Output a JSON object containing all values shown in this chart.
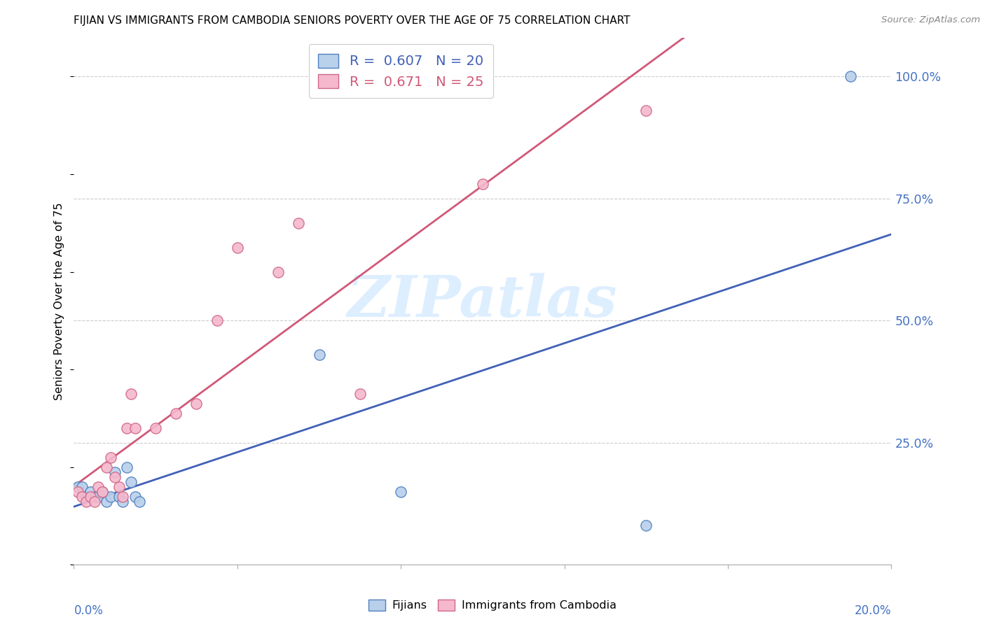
{
  "title": "FIJIAN VS IMMIGRANTS FROM CAMBODIA SENIORS POVERTY OVER THE AGE OF 75 CORRELATION CHART",
  "source": "Source: ZipAtlas.com",
  "ylabel": "Seniors Poverty Over the Age of 75",
  "fijians_R": 0.607,
  "fijians_N": 20,
  "cambodia_R": 0.671,
  "cambodia_N": 25,
  "fijians_dot_face": "#b8d0ea",
  "fijians_dot_edge": "#5080c0",
  "cambodia_dot_face": "#f5b8cc",
  "cambodia_dot_edge": "#d06888",
  "fijians_line_color": "#4060b8",
  "cambodia_line_color": "#d05878",
  "watermark_color": "#ddeeff",
  "grid_color": "#cccccc",
  "right_tick_color": "#4472c4",
  "fijians_x": [
    0.001,
    0.002,
    0.003,
    0.004,
    0.005,
    0.006,
    0.007,
    0.008,
    0.009,
    0.01,
    0.011,
    0.012,
    0.013,
    0.014,
    0.015,
    0.016,
    0.06,
    0.08,
    0.14,
    0.19
  ],
  "fijians_y": [
    0.16,
    0.16,
    0.14,
    0.15,
    0.14,
    0.14,
    0.15,
    0.13,
    0.14,
    0.19,
    0.14,
    0.13,
    0.2,
    0.17,
    0.14,
    0.13,
    0.43,
    0.15,
    0.08,
    1.0
  ],
  "cambodia_x": [
    0.001,
    0.002,
    0.003,
    0.004,
    0.005,
    0.006,
    0.007,
    0.008,
    0.009,
    0.01,
    0.011,
    0.012,
    0.013,
    0.014,
    0.015,
    0.02,
    0.025,
    0.03,
    0.035,
    0.04,
    0.05,
    0.055,
    0.07,
    0.1,
    0.14
  ],
  "cambodia_y": [
    0.15,
    0.14,
    0.13,
    0.14,
    0.13,
    0.16,
    0.15,
    0.2,
    0.22,
    0.18,
    0.16,
    0.14,
    0.28,
    0.35,
    0.28,
    0.28,
    0.31,
    0.33,
    0.5,
    0.65,
    0.6,
    0.7,
    0.35,
    0.78,
    0.93
  ],
  "xlim": [
    0,
    0.2
  ],
  "ylim": [
    0,
    1.08
  ],
  "yticks": [
    0.0,
    0.25,
    0.5,
    0.75,
    1.0
  ],
  "ytick_labels_right": [
    "",
    "25.0%",
    "50.0%",
    "75.0%",
    "100.0%"
  ],
  "xticks": [
    0.0,
    0.04,
    0.08,
    0.12,
    0.16,
    0.2
  ]
}
